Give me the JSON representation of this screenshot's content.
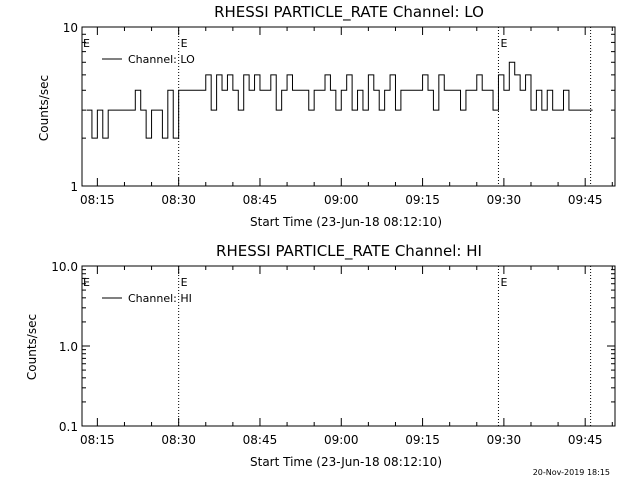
{
  "footer": {
    "timestamp": "20-Nov-2019 18:15"
  },
  "chart_data": [
    {
      "type": "line",
      "title": "RHESSI PARTICLE_RATE Channel: LO",
      "xlabel": "Start Time (23-Jun-18 08:12:10)",
      "ylabel": "Counts/sec",
      "y_scale": "log",
      "ylim": [
        1,
        10
      ],
      "xlim": [
        "08:12:10",
        "09:50:30"
      ],
      "x_ticks": [
        "08:15",
        "08:30",
        "08:45",
        "09:00",
        "09:15",
        "09:30",
        "09:45"
      ],
      "y_ticks": [
        "1",
        "10"
      ],
      "legend_position": "top-left",
      "markers": [
        {
          "time": "08:30",
          "label": "E"
        },
        {
          "time": "09:29",
          "label": "E"
        },
        {
          "time": "09:46",
          "label": ""
        }
      ],
      "series": [
        {
          "name": "Channel: LO",
          "x": [
            "08:13",
            "08:14",
            "08:15",
            "08:16",
            "08:17",
            "08:18",
            "08:19",
            "08:20",
            "08:21",
            "08:22",
            "08:23",
            "08:24",
            "08:25",
            "08:26",
            "08:27",
            "08:28",
            "08:29",
            "08:30",
            "08:31",
            "08:32",
            "08:33",
            "08:34",
            "08:35",
            "08:36",
            "08:37",
            "08:38",
            "08:39",
            "08:40",
            "08:41",
            "08:42",
            "08:43",
            "08:44",
            "08:45",
            "08:46",
            "08:47",
            "08:48",
            "08:49",
            "08:50",
            "08:51",
            "08:52",
            "08:53",
            "08:54",
            "08:55",
            "08:56",
            "08:57",
            "08:58",
            "08:59",
            "09:00",
            "09:01",
            "09:02",
            "09:03",
            "09:04",
            "09:05",
            "09:06",
            "09:07",
            "09:08",
            "09:09",
            "09:10",
            "09:11",
            "09:12",
            "09:13",
            "09:14",
            "09:15",
            "09:16",
            "09:17",
            "09:18",
            "09:19",
            "09:20",
            "09:21",
            "09:22",
            "09:23",
            "09:24",
            "09:25",
            "09:26",
            "09:27",
            "09:28",
            "09:29",
            "09:30",
            "09:31",
            "09:32",
            "09:33",
            "09:34",
            "09:35",
            "09:36",
            "09:37",
            "09:38",
            "09:39",
            "09:40",
            "09:41",
            "09:42",
            "09:43",
            "09:44",
            "09:45",
            "09:46"
          ],
          "y": [
            3,
            2,
            3,
            2,
            3,
            3,
            3,
            3,
            3,
            4,
            3,
            2,
            3,
            3,
            2,
            4,
            2,
            4,
            4,
            4,
            4,
            4,
            5,
            3,
            5,
            4,
            5,
            4,
            3,
            5,
            4,
            5,
            4,
            4,
            5,
            3,
            4,
            5,
            4,
            4,
            4,
            3,
            4,
            4,
            5,
            4,
            3,
            4,
            5,
            3,
            4,
            3,
            5,
            4,
            3,
            4,
            5,
            3,
            4,
            4,
            4,
            4,
            5,
            4,
            3,
            5,
            4,
            4,
            4,
            3,
            4,
            4,
            5,
            4,
            4,
            3,
            5,
            4,
            6,
            5,
            4,
            5,
            3,
            4,
            3,
            4,
            3,
            3,
            4,
            3,
            3,
            3,
            3,
            3
          ]
        }
      ]
    },
    {
      "type": "line",
      "title": "RHESSI PARTICLE_RATE Channel: HI",
      "xlabel": "Start Time (23-Jun-18 08:12:10)",
      "ylabel": "Counts/sec",
      "y_scale": "log",
      "ylim": [
        0.1,
        10.0
      ],
      "xlim": [
        "08:12:10",
        "09:50:30"
      ],
      "x_ticks": [
        "08:15",
        "08:30",
        "08:45",
        "09:00",
        "09:15",
        "09:30",
        "09:45"
      ],
      "y_ticks": [
        "0.1",
        "1.0",
        "10.0"
      ],
      "legend_position": "top-left",
      "markers": [
        {
          "time": "08:30",
          "label": "E"
        },
        {
          "time": "09:29",
          "label": "E"
        },
        {
          "time": "09:46",
          "label": ""
        }
      ],
      "series": [
        {
          "name": "Channel: HI",
          "x": [],
          "y": []
        }
      ]
    }
  ]
}
